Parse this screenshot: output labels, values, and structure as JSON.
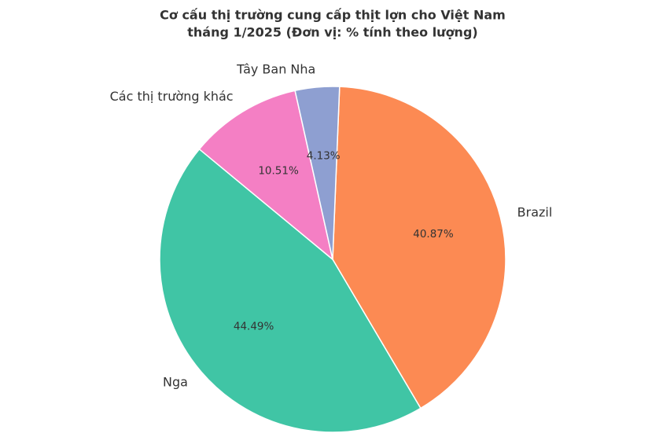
{
  "chart_data": {
    "type": "pie",
    "title": [
      "Cơ cấu thị trường cung cấp thịt lợn cho Việt Nam",
      "tháng 1/2025 (Đơn vị: % tính theo lượng)"
    ],
    "categories": [
      "Brazil",
      "Nga",
      "Các thị trường khác",
      "Tây Ban Nha"
    ],
    "values": [
      40.87,
      44.49,
      10.51,
      4.13
    ],
    "value_labels": [
      "40.87%",
      "44.49%",
      "10.51%",
      "4.13%"
    ],
    "colors": [
      "#fc8a53",
      "#40c5a5",
      "#f47fc4",
      "#8e9fd1"
    ]
  }
}
